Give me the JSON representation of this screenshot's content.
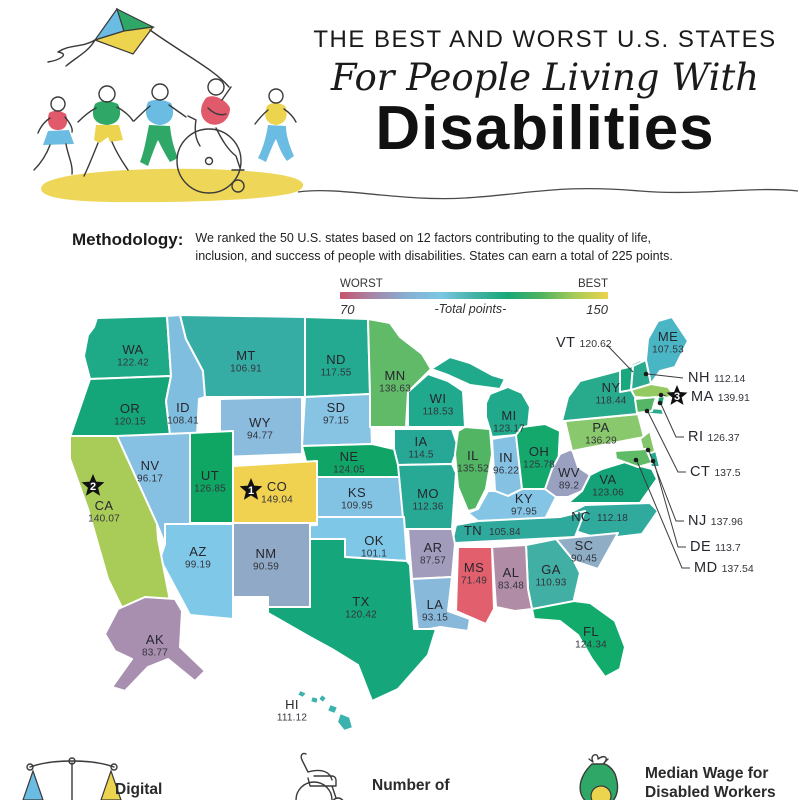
{
  "header": {
    "title_line1": "THE BEST AND WORST U.S. STATES",
    "title_line2": "For People Living With",
    "title_line3": "Disabilities"
  },
  "methodology": {
    "label": "Methodology:",
    "text": "We ranked the 50 U.S. states based on 12 factors contributing to the quality of life, inclusion, and success of people with disabilities. States can earn a total of 225 points."
  },
  "legend": {
    "worst_label": "WORST",
    "best_label": "BEST",
    "min": "70",
    "max": "150",
    "axis_label": "-Total points-",
    "gradient": [
      "#C8536B",
      "#A488A9",
      "#86AFD3",
      "#7CC6E4",
      "#44B3A6",
      "#18A878",
      "#4FB25F",
      "#A5CB57",
      "#EBD34B"
    ]
  },
  "map": {
    "states": [
      {
        "code": "WA",
        "value": "122.42",
        "color": "#1FAA87"
      },
      {
        "code": "OR",
        "value": "120.15",
        "color": "#14A678"
      },
      {
        "code": "CA",
        "value": "140.07",
        "color": "#A9CC58",
        "rank": 2
      },
      {
        "code": "NV",
        "value": "96.17",
        "color": "#86C0E2"
      },
      {
        "code": "ID",
        "value": "108.41",
        "color": "#80BEE0"
      },
      {
        "code": "MT",
        "value": "106.91",
        "color": "#35ADA5"
      },
      {
        "code": "WY",
        "value": "94.77",
        "color": "#8BBCDE"
      },
      {
        "code": "UT",
        "value": "126.85",
        "color": "#0FA664"
      },
      {
        "code": "CO",
        "value": "149.04",
        "color": "#F1D250",
        "rank": 1
      },
      {
        "code": "AZ",
        "value": "99.19",
        "color": "#7FC8E8"
      },
      {
        "code": "NM",
        "value": "90.59",
        "color": "#90A9C6"
      },
      {
        "code": "ND",
        "value": "117.55",
        "color": "#23AA91"
      },
      {
        "code": "SD",
        "value": "97.15",
        "color": "#87C3E3"
      },
      {
        "code": "NE",
        "value": "124.05",
        "color": "#10A566"
      },
      {
        "code": "KS",
        "value": "109.95",
        "color": "#82C2E2"
      },
      {
        "code": "OK",
        "value": "101.1",
        "color": "#7FC7E7"
      },
      {
        "code": "TX",
        "value": "120.42",
        "color": "#15A67B"
      },
      {
        "code": "MN",
        "value": "138.63",
        "color": "#60BA67"
      },
      {
        "code": "IA",
        "value": "114.5",
        "color": "#27A896"
      },
      {
        "code": "MO",
        "value": "112.36",
        "color": "#28A995"
      },
      {
        "code": "AR",
        "value": "87.57",
        "color": "#A29CBC"
      },
      {
        "code": "LA",
        "value": "93.15",
        "color": "#88B9DB"
      },
      {
        "code": "WI",
        "value": "118.53",
        "color": "#20A98D"
      },
      {
        "code": "IL",
        "value": "135.52",
        "color": "#52B563"
      },
      {
        "code": "MS",
        "value": "71.49",
        "color": "#E2606E"
      },
      {
        "code": "MI",
        "value": "123.17",
        "color": "#20A98B"
      },
      {
        "code": "IN",
        "value": "96.22",
        "color": "#85C1E2"
      },
      {
        "code": "OH",
        "value": "125.78",
        "color": "#15A86D"
      },
      {
        "code": "KY",
        "value": "97.95",
        "color": "#84C4E4"
      },
      {
        "code": "TN",
        "value": "105.84",
        "color": "#2FA99C"
      },
      {
        "code": "AL",
        "value": "83.48",
        "color": "#B08CA6"
      },
      {
        "code": "GA",
        "value": "110.93",
        "color": "#41AFA3"
      },
      {
        "code": "FL",
        "value": "124.34",
        "color": "#12AB6C"
      },
      {
        "code": "SC",
        "value": "90.45",
        "color": "#8FAEC6"
      },
      {
        "code": "NC",
        "value": "112.18",
        "color": "#2FAA9D"
      },
      {
        "code": "VA",
        "value": "123.06",
        "color": "#14A378"
      },
      {
        "code": "WV",
        "value": "89.2",
        "color": "#9AA1C0"
      },
      {
        "code": "PA",
        "value": "136.29",
        "color": "#8AC86D"
      },
      {
        "code": "NY",
        "value": "118.44",
        "color": "#28AA8C"
      },
      {
        "code": "ME",
        "value": "107.53",
        "color": "#4AB5C4"
      },
      {
        "code": "VT",
        "value": "120.62",
        "color": "#18A77E"
      },
      {
        "code": "NH",
        "value": "112.14",
        "color": "#2BAA90"
      },
      {
        "code": "MA",
        "value": "139.91",
        "color": "#95CA63",
        "rank": 3
      },
      {
        "code": "RI",
        "value": "126.37",
        "color": "#12A870"
      },
      {
        "code": "CT",
        "value": "137.5",
        "color": "#55B766"
      },
      {
        "code": "NJ",
        "value": "137.96",
        "color": "#83C66A"
      },
      {
        "code": "DE",
        "value": "113.7",
        "color": "#2AA992"
      },
      {
        "code": "MD",
        "value": "137.54",
        "color": "#60BB66"
      },
      {
        "code": "AK",
        "value": "83.77",
        "color": "#A88FB0"
      },
      {
        "code": "HI",
        "value": "111.12",
        "color": "#3BB2AE"
      }
    ]
  },
  "chart_data": {
    "type": "heatmap",
    "subtype": "us-choropleth",
    "title": "The Best and Worst U.S. States For People Living With Disabilities",
    "legend": {
      "min": 70,
      "max": 150,
      "min_label": "WORST",
      "max_label": "BEST",
      "axis_label": "-Total points-"
    },
    "categories": [
      "WA",
      "OR",
      "CA",
      "NV",
      "ID",
      "MT",
      "WY",
      "UT",
      "CO",
      "AZ",
      "NM",
      "ND",
      "SD",
      "NE",
      "KS",
      "OK",
      "TX",
      "MN",
      "IA",
      "MO",
      "AR",
      "LA",
      "WI",
      "IL",
      "MS",
      "MI",
      "IN",
      "OH",
      "KY",
      "TN",
      "AL",
      "GA",
      "FL",
      "SC",
      "NC",
      "VA",
      "WV",
      "PA",
      "NY",
      "ME",
      "VT",
      "NH",
      "MA",
      "RI",
      "CT",
      "NJ",
      "DE",
      "MD",
      "AK",
      "HI"
    ],
    "values": [
      122.42,
      120.15,
      140.07,
      96.17,
      108.41,
      106.91,
      94.77,
      126.85,
      149.04,
      99.19,
      90.59,
      117.55,
      97.15,
      124.05,
      109.95,
      101.1,
      120.42,
      138.63,
      114.5,
      112.36,
      87.57,
      93.15,
      118.53,
      135.52,
      71.49,
      123.17,
      96.22,
      125.78,
      97.95,
      105.84,
      83.48,
      110.93,
      124.34,
      90.45,
      112.18,
      123.06,
      89.2,
      136.29,
      118.44,
      107.53,
      120.62,
      112.14,
      139.91,
      126.37,
      137.5,
      137.96,
      113.7,
      137.54,
      83.77,
      111.12
    ],
    "ranks": [
      {
        "rank": 1,
        "state": "CO"
      },
      {
        "rank": 2,
        "state": "CA"
      },
      {
        "rank": 3,
        "state": "MA"
      }
    ],
    "max_points": 225
  },
  "footer": {
    "items": [
      {
        "icon": "scales-icon",
        "label": "Digital"
      },
      {
        "icon": "wheelchair-icon",
        "label": "Number of"
      },
      {
        "icon": "money-bag-icon",
        "label": "Median Wage for Disabled Workers"
      }
    ]
  }
}
